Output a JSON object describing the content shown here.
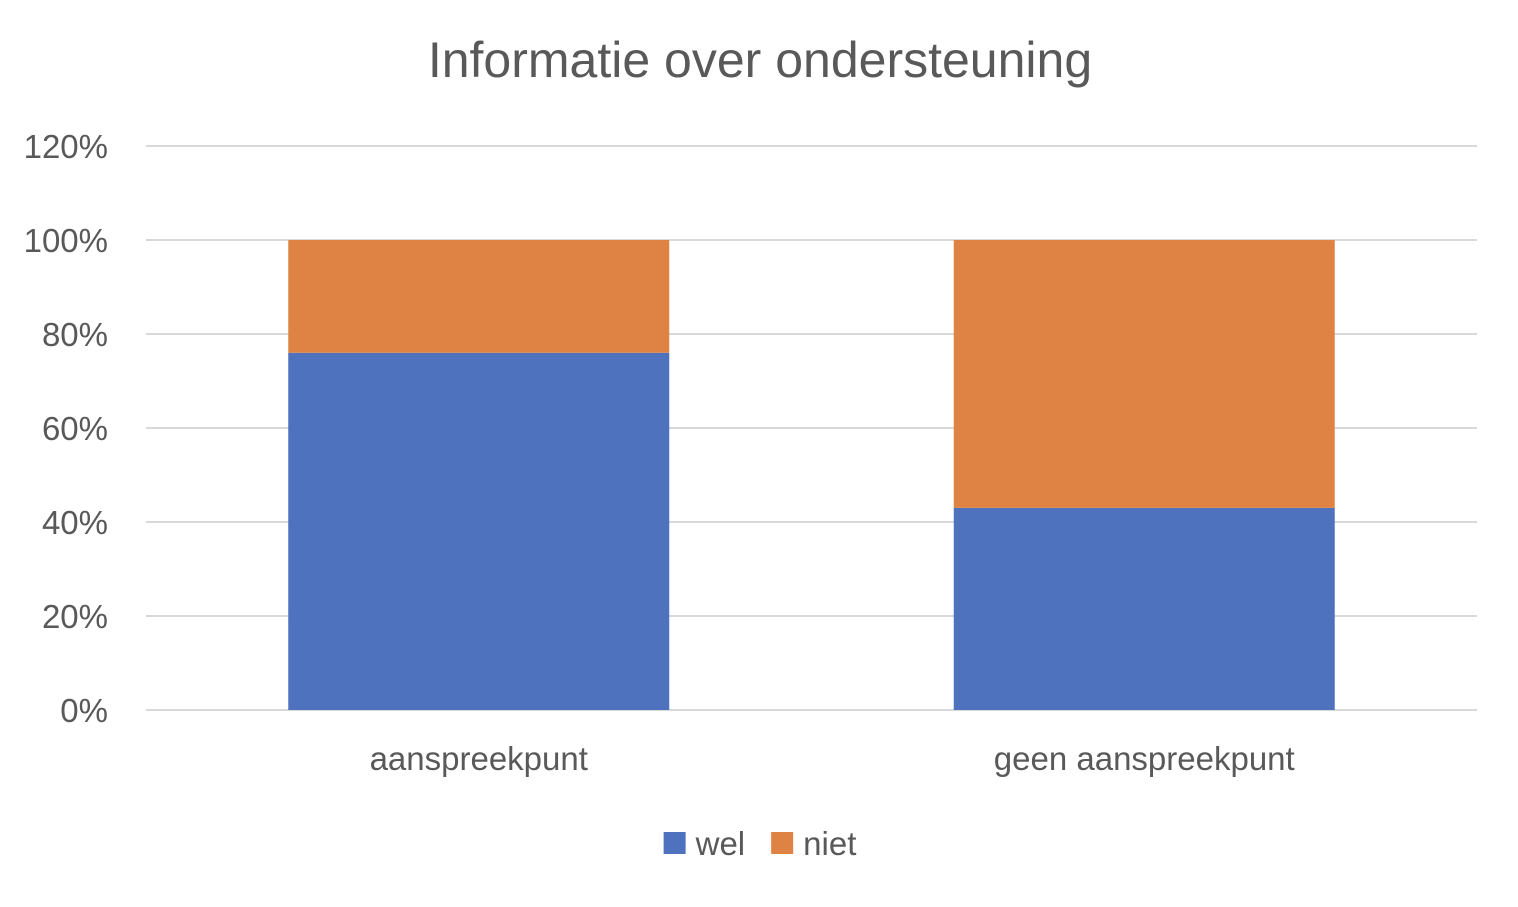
{
  "chart_data": {
    "type": "bar",
    "stacked": true,
    "title": "Informatie over ondersteuning",
    "xlabel": "",
    "ylabel": "",
    "categories": [
      "aanspreekpunt",
      "geen aanspreekpunt"
    ],
    "series": [
      {
        "name": "wel",
        "values": [
          76,
          43
        ],
        "color": "#4f72be"
      },
      {
        "name": "niet",
        "values": [
          24,
          57
        ],
        "color": "#df8344"
      }
    ],
    "ylim": [
      0,
      120
    ],
    "yticks": [
      0,
      20,
      40,
      60,
      80,
      100,
      120
    ],
    "ytick_labels": [
      "0%",
      "20%",
      "40%",
      "60%",
      "80%",
      "100%",
      "120%"
    ],
    "grid": true,
    "legend_position": "bottom"
  }
}
